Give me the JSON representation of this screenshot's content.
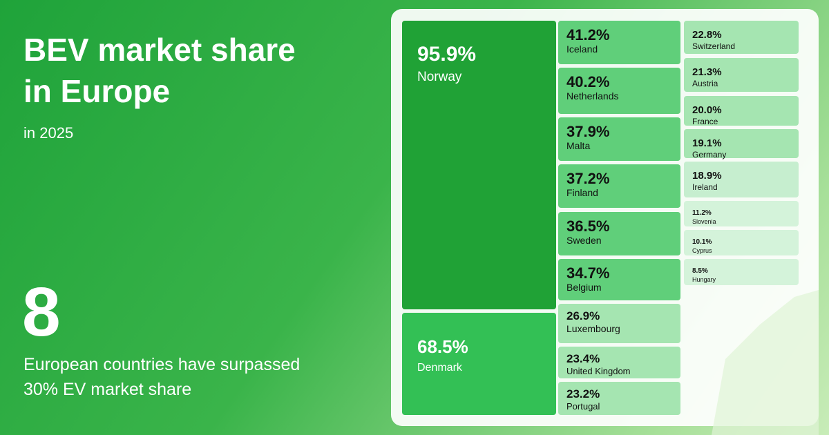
{
  "header": {
    "title": "BEV market share in Europe",
    "subtitle": "in 2025"
  },
  "highlight": {
    "number": "8",
    "caption": "European countries have surpassed 30% EV market share"
  },
  "chart_data": {
    "type": "treemap",
    "categories": [
      "Norway",
      "Denmark",
      "Iceland",
      "Netherlands",
      "Malta",
      "Finland",
      "Sweden",
      "Belgium",
      "Luxembourg",
      "United Kingdom",
      "Portugal",
      "Switzerland",
      "Austria",
      "France",
      "Germany",
      "Ireland",
      "Slovenia",
      "Cyprus",
      "Hungary"
    ],
    "values": [
      95.9,
      68.5,
      41.2,
      40.2,
      37.9,
      37.2,
      36.5,
      34.7,
      26.9,
      23.4,
      23.2,
      22.8,
      21.3,
      20.0,
      19.1,
      18.9,
      11.2,
      10.1,
      8.5
    ],
    "value_labels": [
      "95.9%",
      "68.5%",
      "41.2%",
      "40.2%",
      "37.9%",
      "37.2%",
      "36.5%",
      "34.7%",
      "26.9%",
      "23.4%",
      "23.2%",
      "22.8%",
      "21.3%",
      "20.0%",
      "19.1%",
      "18.9%",
      "11.2%",
      "10.1%",
      "8.5%"
    ],
    "colors": [
      "#20a236",
      "#33c055",
      "#60cf7a",
      "#60cf7a",
      "#60cf7a",
      "#60cf7a",
      "#60cf7a",
      "#60cf7a",
      "#a5e5b1",
      "#a5e5b1",
      "#a5e5b1",
      "#a5e5b1",
      "#a5e5b1",
      "#a5e5b1",
      "#a5e5b1",
      "#c6eecf",
      "#d4f3da",
      "#d4f3da",
      "#d4f3da"
    ]
  }
}
